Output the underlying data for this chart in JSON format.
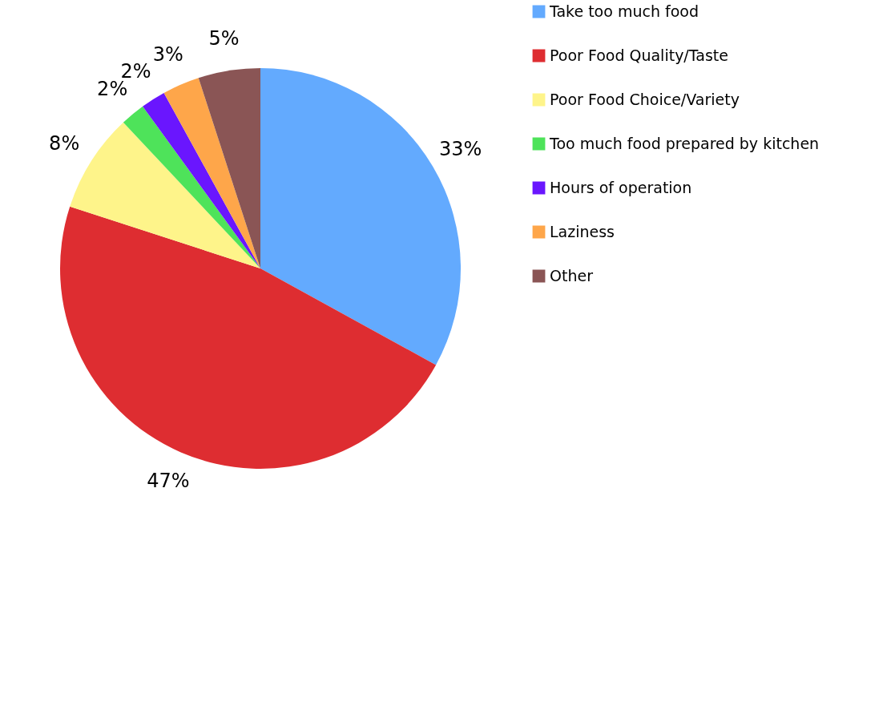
{
  "chart_data": {
    "type": "pie",
    "categories": [
      "Take too much food",
      "Poor Food Quality/Taste",
      "Poor Food Choice/Variety",
      "Too much food prepared by kitchen",
      "Hours of operation",
      "Laziness",
      "Other"
    ],
    "values": [
      33,
      47,
      8,
      2,
      2,
      3,
      5
    ],
    "colors": [
      "#63aafe",
      "#de2d31",
      "#fef48a",
      "#4ee35a",
      "#6a16fe",
      "#fea64a",
      "#8a5555"
    ],
    "value_labels": [
      "33%",
      "47%",
      "8%",
      "2%",
      "2%",
      "3%",
      "5%"
    ],
    "legend": "right"
  }
}
